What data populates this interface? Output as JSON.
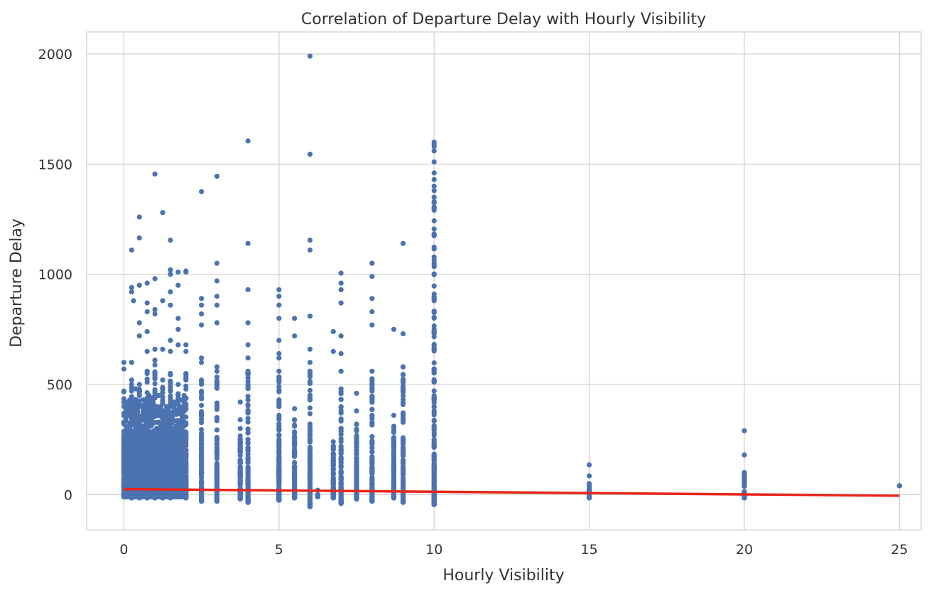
{
  "chart_data": {
    "type": "scatter",
    "title": "Correlation of Departure Delay with Hourly Visibility",
    "xlabel": "Hourly Visibility",
    "ylabel": "Departure Delay",
    "xlim": [
      -1.2,
      25.7
    ],
    "ylim": [
      -160,
      2100
    ],
    "xticks": [
      0,
      5,
      10,
      15,
      20,
      25
    ],
    "yticks": [
      0,
      500,
      1000,
      1500,
      2000
    ],
    "grid": true,
    "point_color": "#4c72b0",
    "line_color": "#e8251a",
    "regression_line": {
      "x": [
        0,
        25
      ],
      "y": [
        25,
        -5
      ]
    },
    "columns": [
      {
        "x": 0.0,
        "y_min": -10,
        "y_max": 470,
        "outliers": [
          570,
          600
        ]
      },
      {
        "x": 0.06,
        "y_min": -10,
        "y_max": 380
      },
      {
        "x": 0.12,
        "y_min": -10,
        "y_max": 420
      },
      {
        "x": 0.19,
        "y_min": -10,
        "y_max": 430
      },
      {
        "x": 0.25,
        "y_min": -15,
        "y_max": 520,
        "outliers": [
          600,
          920,
          940,
          1110
        ]
      },
      {
        "x": 0.31,
        "y_min": -10,
        "y_max": 400,
        "outliers": [
          880
        ]
      },
      {
        "x": 0.38,
        "y_min": -10,
        "y_max": 480
      },
      {
        "x": 0.44,
        "y_min": -10,
        "y_max": 420
      },
      {
        "x": 0.5,
        "y_min": -15,
        "y_max": 500,
        "outliers": [
          720,
          780,
          950,
          1165,
          1260
        ]
      },
      {
        "x": 0.56,
        "y_min": -10,
        "y_max": 400
      },
      {
        "x": 0.62,
        "y_min": -10,
        "y_max": 430
      },
      {
        "x": 0.69,
        "y_min": -10,
        "y_max": 420
      },
      {
        "x": 0.75,
        "y_min": -15,
        "y_max": 560,
        "outliers": [
          650,
          740,
          830,
          870,
          960
        ]
      },
      {
        "x": 0.81,
        "y_min": -10,
        "y_max": 450
      },
      {
        "x": 0.88,
        "y_min": -10,
        "y_max": 430
      },
      {
        "x": 0.94,
        "y_min": -10,
        "y_max": 440
      },
      {
        "x": 1.0,
        "y_min": -15,
        "y_max": 610,
        "outliers": [
          660,
          820,
          840,
          980,
          1455
        ]
      },
      {
        "x": 1.06,
        "y_min": -10,
        "y_max": 400
      },
      {
        "x": 1.12,
        "y_min": -10,
        "y_max": 450
      },
      {
        "x": 1.19,
        "y_min": -10,
        "y_max": 400
      },
      {
        "x": 1.25,
        "y_min": -15,
        "y_max": 520,
        "outliers": [
          660,
          880,
          1280
        ]
      },
      {
        "x": 1.31,
        "y_min": -10,
        "y_max": 380
      },
      {
        "x": 1.38,
        "y_min": -10,
        "y_max": 400
      },
      {
        "x": 1.44,
        "y_min": -10,
        "y_max": 380
      },
      {
        "x": 1.5,
        "y_min": -15,
        "y_max": 550,
        "outliers": [
          650,
          700,
          860,
          920,
          1000,
          1020,
          1155
        ]
      },
      {
        "x": 1.56,
        "y_min": -10,
        "y_max": 360
      },
      {
        "x": 1.62,
        "y_min": -10,
        "y_max": 420
      },
      {
        "x": 1.69,
        "y_min": -10,
        "y_max": 380
      },
      {
        "x": 1.75,
        "y_min": -10,
        "y_max": 500,
        "outliers": [
          680,
          750,
          800,
          950,
          1010
        ]
      },
      {
        "x": 1.81,
        "y_min": -10,
        "y_max": 400
      },
      {
        "x": 1.88,
        "y_min": -10,
        "y_max": 430
      },
      {
        "x": 1.94,
        "y_min": -10,
        "y_max": 450
      },
      {
        "x": 2.0,
        "y_min": -15,
        "y_max": 550,
        "outliers": [
          650,
          680,
          1010,
          1015
        ]
      },
      {
        "x": 2.5,
        "y_min": -30,
        "y_max": 520,
        "outliers": [
          600,
          620,
          770,
          820,
          860,
          890,
          1375
        ]
      },
      {
        "x": 3.0,
        "y_min": -30,
        "y_max": 560,
        "outliers": [
          580,
          780,
          860,
          900,
          970,
          1050,
          1445
        ]
      },
      {
        "x": 3.75,
        "y_min": -20,
        "y_max": 300,
        "outliers": [
          340,
          420
        ]
      },
      {
        "x": 4.0,
        "y_min": -35,
        "y_max": 560,
        "outliers": [
          620,
          680,
          780,
          930,
          1140,
          1605
        ]
      },
      {
        "x": 5.0,
        "y_min": -25,
        "y_max": 560,
        "outliers": [
          620,
          640,
          700,
          800,
          860,
          900,
          930
        ]
      },
      {
        "x": 5.5,
        "y_min": -15,
        "y_max": 340,
        "outliers": [
          390,
          720,
          800
        ]
      },
      {
        "x": 6.0,
        "y_min": -55,
        "y_max": 560,
        "outliers": [
          600,
          660,
          810,
          1110,
          1155,
          1545,
          1990
        ]
      },
      {
        "x": 6.25,
        "y_min": -10,
        "y_max": 20
      },
      {
        "x": 6.75,
        "y_min": -15,
        "y_max": 240,
        "outliers": [
          650,
          740
        ]
      },
      {
        "x": 7.0,
        "y_min": -40,
        "y_max": 480,
        "outliers": [
          560,
          640,
          720,
          870,
          930,
          960,
          1005
        ]
      },
      {
        "x": 7.5,
        "y_min": -20,
        "y_max": 320,
        "outliers": [
          380,
          460
        ]
      },
      {
        "x": 8.0,
        "y_min": -30,
        "y_max": 560,
        "outliers": [
          770,
          830,
          890,
          990,
          1050
        ]
      },
      {
        "x": 8.7,
        "y_min": -15,
        "y_max": 310,
        "outliers": [
          360,
          750
        ]
      },
      {
        "x": 9.0,
        "y_min": -35,
        "y_max": 580,
        "outliers": [
          730,
          1140
        ]
      },
      {
        "x": 10.0,
        "y_min": -45,
        "y_max": 1330,
        "outliers": [
          1350,
          1380,
          1400,
          1430,
          1460,
          1510,
          1560,
          1580,
          1590,
          1600
        ]
      },
      {
        "x": 15.0,
        "y_min": -15,
        "y_max": 50,
        "outliers": [
          85,
          135
        ]
      },
      {
        "x": 20.0,
        "y_min": -15,
        "y_max": 100,
        "outliers": [
          180,
          290
        ]
      },
      {
        "x": 25.0,
        "y_min": 40,
        "y_max": 40
      }
    ]
  }
}
